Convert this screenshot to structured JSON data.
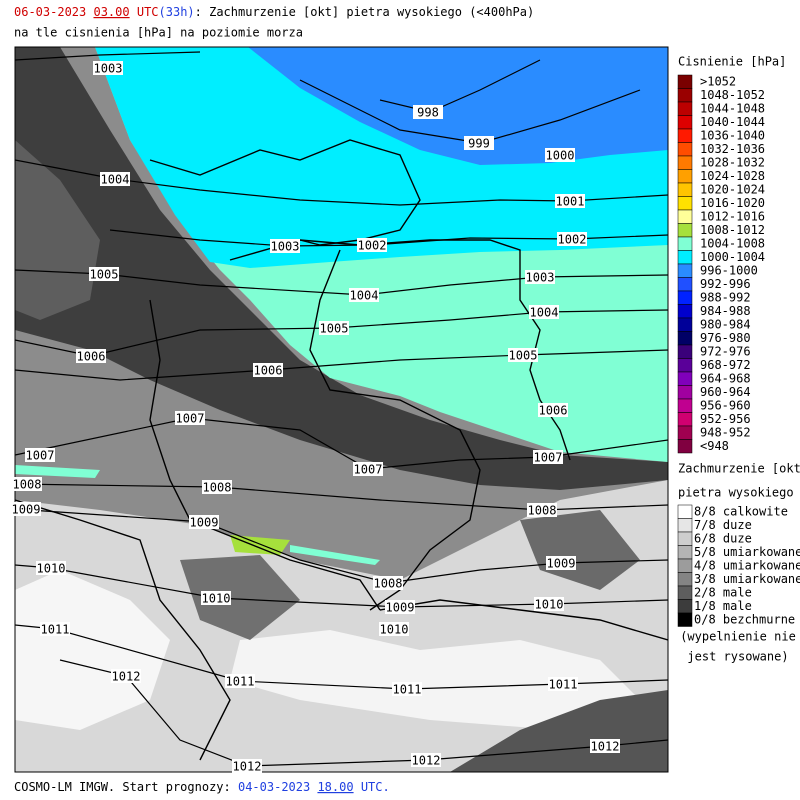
{
  "header": {
    "date": "06-03-2023",
    "hour": "03.00",
    "utc": "UTC",
    "lead": "(33h)",
    "description": ": Zachmurzenie [okt] pietra wysokiego (<400hPa)",
    "subtitle": "na tle cisnienia [hPa] na poziomie morza"
  },
  "map": {
    "isobar_labels": [
      1003,
      998,
      999,
      1000,
      1004,
      1001,
      1003,
      1002,
      1002,
      1005,
      1003,
      1004,
      1004,
      1005,
      1006,
      1005,
      1006,
      1006,
      1007,
      1007,
      1007,
      1007,
      1008,
      1008,
      1008,
      1009,
      1009,
      1009,
      1010,
      1008,
      1010,
      1009,
      1010,
      1010,
      1011,
      1012,
      1011,
      1011,
      1011,
      1012,
      1012,
      1012
    ]
  },
  "legend": {
    "pressure": {
      "title": "Cisnienie [hPa]",
      "items": [
        {
          "label": ">1052",
          "color": "#7a0000"
        },
        {
          "label": "1048-1052",
          "color": "#9a0000"
        },
        {
          "label": "1044-1048",
          "color": "#bb0000"
        },
        {
          "label": "1040-1044",
          "color": "#dd0000"
        },
        {
          "label": "1036-1040",
          "color": "#ff1a00"
        },
        {
          "label": "1032-1036",
          "color": "#ff4d00"
        },
        {
          "label": "1028-1032",
          "color": "#ff7a00"
        },
        {
          "label": "1024-1028",
          "color": "#ffa000"
        },
        {
          "label": "1020-1024",
          "color": "#ffc400"
        },
        {
          "label": "1016-1020",
          "color": "#ffe100"
        },
        {
          "label": "1012-1016",
          "color": "#ffff99"
        },
        {
          "label": "1008-1012",
          "color": "#a6e03c"
        },
        {
          "label": "1004-1008",
          "color": "#80ffd4"
        },
        {
          "label": "1000-1004",
          "color": "#00eeff"
        },
        {
          "label": "996-1000",
          "color": "#2a8cff"
        },
        {
          "label": "992-996",
          "color": "#2050ff"
        },
        {
          "label": "988-992",
          "color": "#0022ff"
        },
        {
          "label": "984-988",
          "color": "#0000cc"
        },
        {
          "label": "980-984",
          "color": "#000099"
        },
        {
          "label": "976-980",
          "color": "#000066"
        },
        {
          "label": "972-976",
          "color": "#3a007a"
        },
        {
          "label": "968-972",
          "color": "#5a0099"
        },
        {
          "label": "964-968",
          "color": "#8000bb"
        },
        {
          "label": "960-964",
          "color": "#a000a0"
        },
        {
          "label": "956-960",
          "color": "#c00090"
        },
        {
          "label": "952-956",
          "color": "#d00070"
        },
        {
          "label": "948-952",
          "color": "#a00050"
        },
        {
          "label": "<948",
          "color": "#800040"
        }
      ]
    },
    "cloud": {
      "title": "Zachmurzenie [okt]",
      "subtitle": "pietra wysokiego",
      "items": [
        {
          "label": "8/8 calkowite",
          "color": "#ffffff"
        },
        {
          "label": "7/8 duze",
          "color": "#e6e6e6"
        },
        {
          "label": "6/8 duze",
          "color": "#cecece"
        },
        {
          "label": "5/8 umiarkowane",
          "color": "#b4b4b4"
        },
        {
          "label": "4/8 umiarkowane",
          "color": "#9c9c9c"
        },
        {
          "label": "3/8 umiarkowane",
          "color": "#848484"
        },
        {
          "label": "2/8 male",
          "color": "#5e5e5e"
        },
        {
          "label": "1/8 male",
          "color": "#3c3c3c"
        },
        {
          "label": "0/8 bezchmurne",
          "color": "#000000"
        }
      ],
      "note": [
        "(wypelnienie nie",
        "jest rysowane)"
      ]
    }
  },
  "footer": {
    "model": "COSMO-LM IMGW. Start prognozy: ",
    "date": "04-03-2023",
    "hour": "18.00",
    "utc": "UTC."
  }
}
